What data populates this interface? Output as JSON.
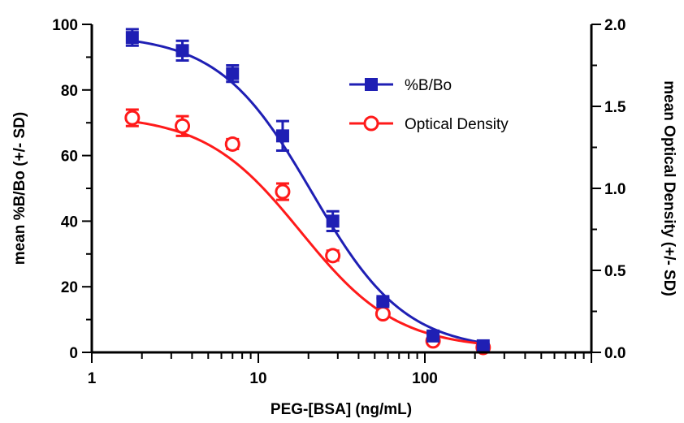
{
  "chart_data": {
    "type": "scatter",
    "xlabel": "PEG-[BSA] (ng/mL)",
    "ylabel": "mean %B/Bo (+/- SD)",
    "y2label": "mean Optical Density (+/- SD)",
    "xscale": "log",
    "xlim": [
      1,
      1000
    ],
    "ylim": [
      0,
      100
    ],
    "y2lim": [
      0,
      2.0
    ],
    "x_ticks": [
      "1",
      "10",
      "100"
    ],
    "y_ticks": [
      "0",
      "20",
      "40",
      "60",
      "80",
      "100"
    ],
    "y2_ticks": [
      "0.0",
      "0.5",
      "1.0",
      "1.5",
      "2.0"
    ],
    "legend_position": "upper-right",
    "grid": false,
    "series": [
      {
        "name": "%B/Bo",
        "axis": "left",
        "color": "#1f1fb4",
        "marker": "filled-square",
        "x": [
          1.75,
          3.5,
          7,
          14,
          28,
          56,
          112,
          224
        ],
        "y": [
          96,
          92,
          85,
          66,
          40,
          15.5,
          5,
          2
        ],
        "err": [
          2.5,
          3,
          2.5,
          4.5,
          3,
          1,
          0.8,
          0.5
        ],
        "fit": {
          "top": 97,
          "bottom": 0.5,
          "ic50": 21,
          "hill": 1.55
        }
      },
      {
        "name": "Optical Density",
        "axis": "right",
        "color": "#ff1a1a",
        "marker": "open-circle",
        "x": [
          1.75,
          3.5,
          7,
          14,
          28,
          56,
          112,
          224
        ],
        "y": [
          1.43,
          1.38,
          1.27,
          0.98,
          0.59,
          0.235,
          0.07,
          0.03
        ],
        "err": [
          0.05,
          0.06,
          0.03,
          0.05,
          0.03,
          0.015,
          0.01,
          0.01
        ],
        "fit": {
          "top": 1.45,
          "bottom": 0.02,
          "ic50": 18,
          "hill": 1.5
        }
      }
    ]
  }
}
